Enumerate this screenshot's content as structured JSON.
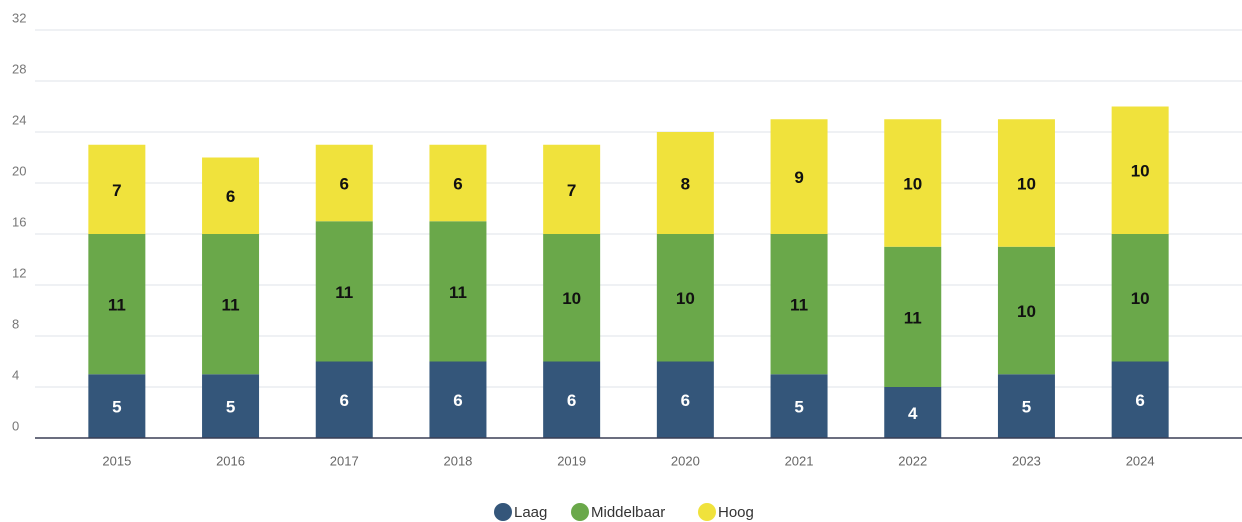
{
  "chart_data": {
    "type": "stacked_bar",
    "categories": [
      "2015",
      "2016",
      "2017",
      "2018",
      "2019",
      "2020",
      "2021",
      "2022",
      "2023",
      "2024"
    ],
    "series": [
      {
        "name": "Laag",
        "color": "#34567a",
        "values": [
          5,
          5,
          6,
          6,
          6,
          6,
          5,
          4,
          5,
          6
        ]
      },
      {
        "name": "Middelbaar",
        "color": "#6aa84a",
        "values": [
          11,
          11,
          11,
          11,
          10,
          10,
          11,
          11,
          10,
          10
        ]
      },
      {
        "name": "Hoog",
        "color": "#f0e23c",
        "values": [
          7,
          6,
          6,
          6,
          7,
          8,
          9,
          10,
          10,
          10
        ]
      }
    ],
    "ylim": [
      0,
      32
    ],
    "yticks": [
      0,
      4,
      8,
      12,
      16,
      20,
      24,
      28,
      32
    ],
    "grid": true,
    "legend": "bottom"
  }
}
